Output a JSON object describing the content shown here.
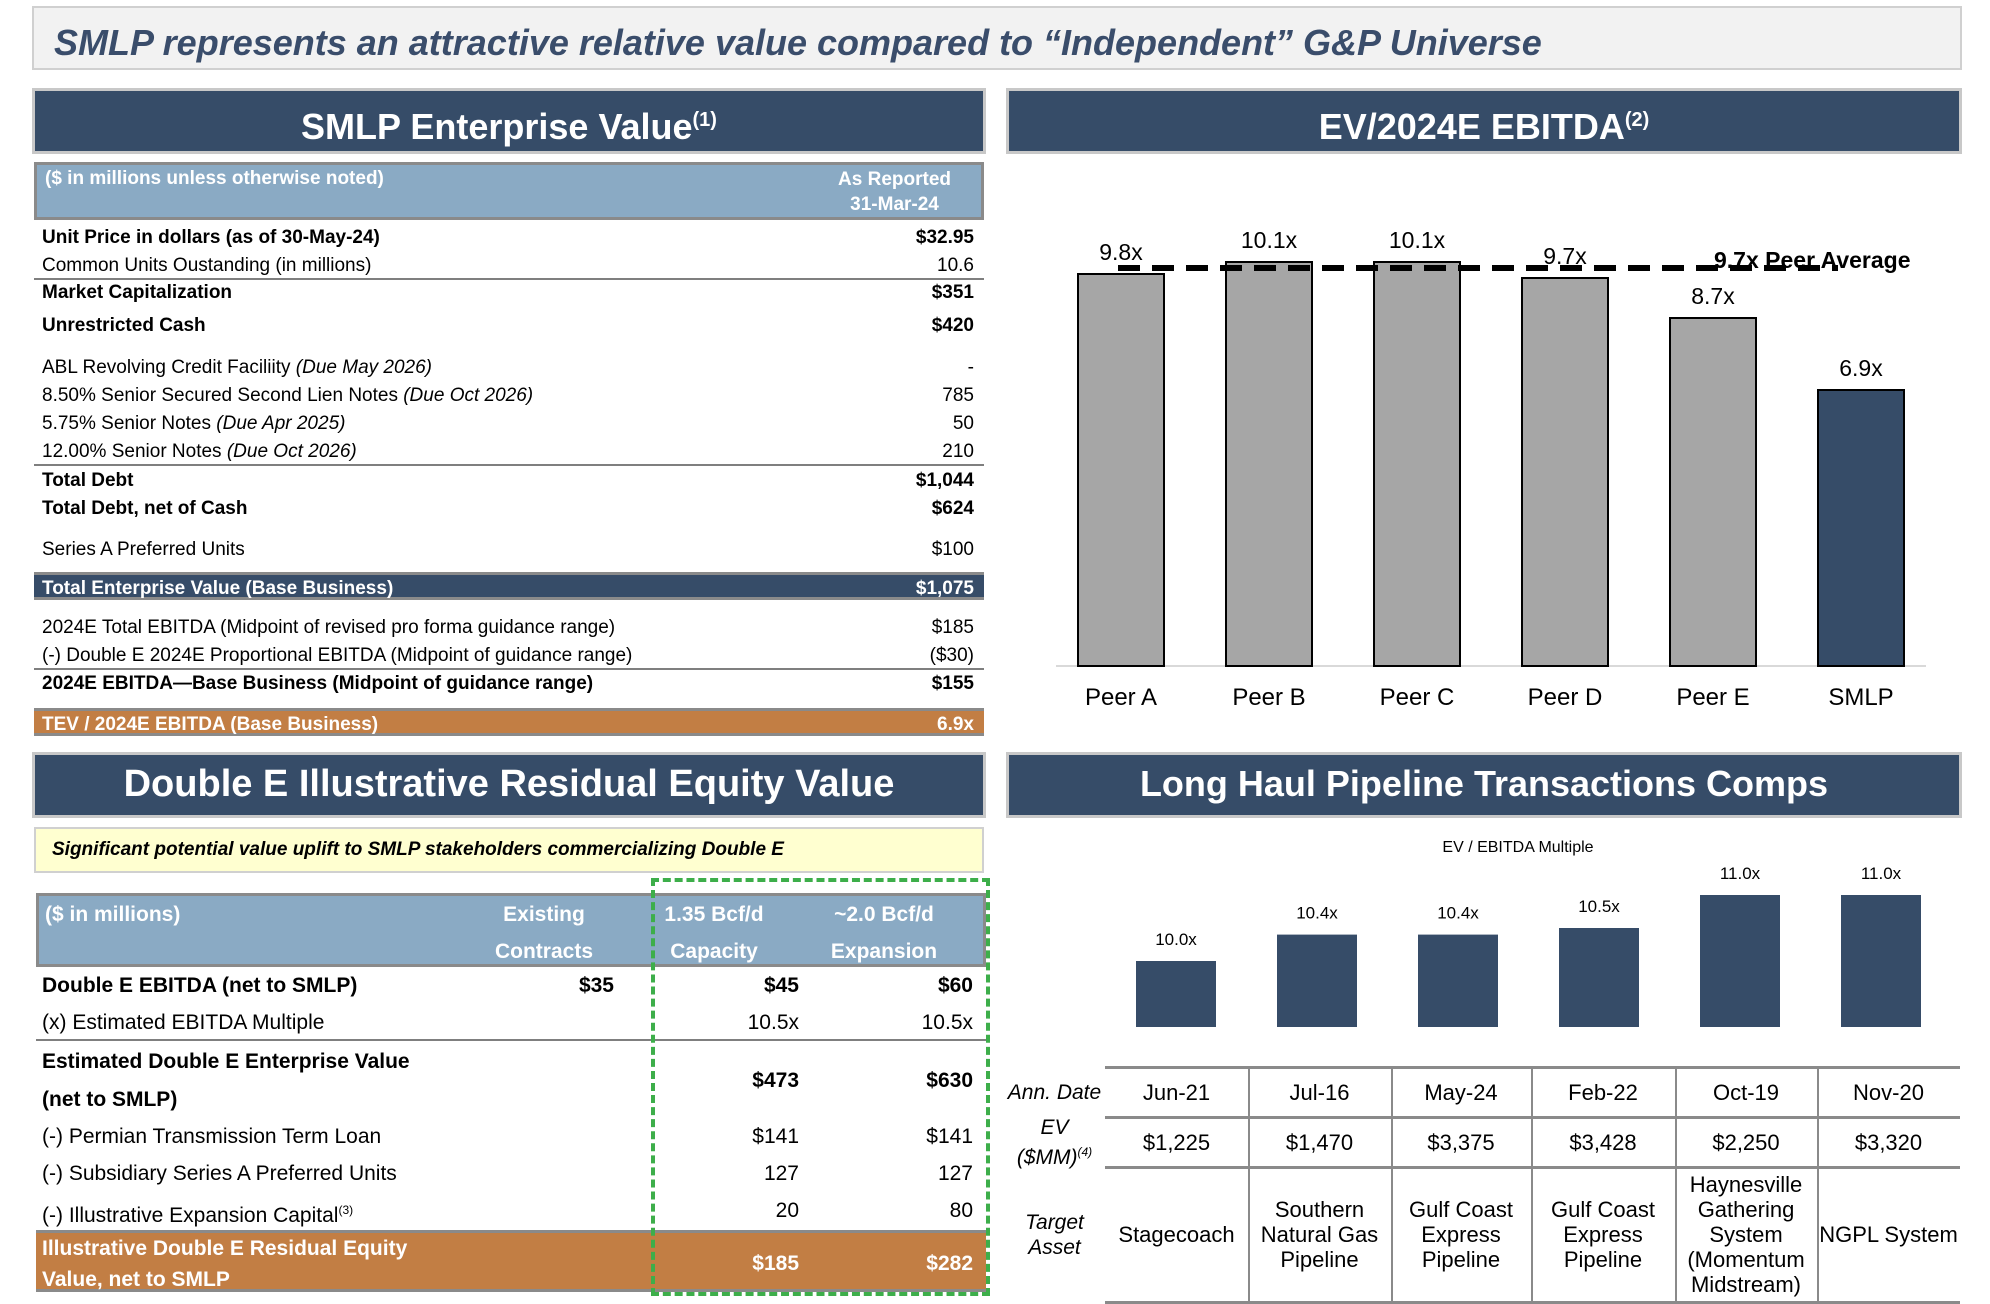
{
  "title": "SMLP represents an attractive relative value compared to “Independent” G&P Universe",
  "ev_section": {
    "heading": "SMLP Enterprise Value",
    "note": "(1)",
    "col_label": "($ in millions unless otherwise noted)",
    "col_head_1": "As Reported",
    "col_head_2": "31-Mar-24",
    "rows": [
      {
        "label": "Unit Price in dollars (as of 30-May-24)",
        "value": "$32.95"
      },
      {
        "label": "Common Units Oustanding (in millions)",
        "value": "10.6"
      },
      {
        "label": "Market Capitalization",
        "value": "$351"
      },
      {
        "label": "Unrestricted Cash",
        "value": "$420"
      },
      {
        "label": "ABL Revolving Credit Faciliity ",
        "italic": "(Due May 2026)",
        "value": "-"
      },
      {
        "label": "8.50% Senior Secured Second Lien Notes ",
        "italic": "(Due Oct 2026)",
        "value": "785"
      },
      {
        "label": "5.75% Senior Notes ",
        "italic": "(Due Apr 2025)",
        "value": "50"
      },
      {
        "label": "12.00% Senior Notes ",
        "italic": "(Due Oct 2026)",
        "value": "210"
      },
      {
        "label": "Total Debt",
        "value": "$1,044"
      },
      {
        "label": "Total Debt, net of Cash",
        "value": "$624"
      },
      {
        "label": "Series A Preferred Units",
        "value": "$100"
      },
      {
        "label": "Total Enterprise Value (Base Business)",
        "value": "$1,075"
      },
      {
        "label": "2024E Total EBITDA (Midpoint of revised pro forma guidance range)",
        "value": "$185"
      },
      {
        "label": "(-) Double E 2024E Proportional EBITDA (Midpoint of guidance range)",
        "value": "($30)"
      },
      {
        "label": "2024E EBITDA—Base Business (Midpoint of guidance range)",
        "value": "$155"
      },
      {
        "label": "TEV / 2024E EBITDA (Base Business)",
        "value": "6.9x"
      }
    ]
  },
  "de_section": {
    "heading": "Double E Illustrative Residual Equity Value",
    "callout": "Significant potential value uplift to SMLP stakeholders commercializing Double E",
    "col_label": "($ in millions)",
    "col_heads": [
      [
        "Existing",
        "Contracts"
      ],
      [
        "1.35 Bcf/d",
        "Capacity"
      ],
      [
        "~2.0 Bcf/d",
        "Expansion"
      ]
    ],
    "rows": [
      {
        "label": "Double E EBITDA (net to SMLP)",
        "values": [
          "$35",
          "$45",
          "$60"
        ]
      },
      {
        "label": "(x) Estimated EBITDA Multiple",
        "values": [
          "",
          "10.5x",
          "10.5x"
        ]
      },
      {
        "label": "Estimated Double E Enterprise Value",
        "label2": "(net to SMLP)",
        "values": [
          "",
          "$473",
          "$630"
        ]
      },
      {
        "label": "(-) Permian Transmission Term Loan",
        "values": [
          "",
          "$141",
          "$141"
        ]
      },
      {
        "label": "(-) Subsidiary Series A Preferred Units",
        "values": [
          "",
          "127",
          "127"
        ]
      },
      {
        "label": "(-) Illustrative Expansion Capital",
        "note": "(3)",
        "values": [
          "",
          "20",
          "80"
        ]
      },
      {
        "label": "Illustrative Double E Residual Equity",
        "label2": "Value, net to SMLP",
        "values": [
          "",
          "$185",
          "$282"
        ]
      }
    ]
  },
  "ev_chart_heading": "EV/2024E EBITDA",
  "ev_chart_note": "(2)",
  "lh_heading": "Long Haul Pipeline Transactions Comps",
  "chart_data": [
    {
      "type": "bar",
      "categories": [
        "Peer A",
        "Peer B",
        "Peer C",
        "Peer D",
        "Peer E",
        "SMLP"
      ],
      "values": [
        9.8,
        10.1,
        10.1,
        9.7,
        8.7,
        6.9
      ],
      "data_labels": [
        "9.8x",
        "10.1x",
        "10.1x",
        "9.7x",
        "8.7x",
        "6.9x"
      ],
      "colors": [
        "#a6a6a6",
        "#a6a6a6",
        "#a6a6a6",
        "#a6a6a6",
        "#a6a6a6",
        "#364c68"
      ],
      "reference_line": {
        "value": 9.7,
        "label": "9.7x Peer Average",
        "style": "dashed"
      },
      "ylim": [
        0,
        10.5
      ],
      "grid": false
    },
    {
      "type": "bar",
      "title": "EV / EBITDA Multiple",
      "categories": [
        "Stagecoach",
        "Southern Natural Gas Pipeline",
        "Gulf Coast Express Pipeline",
        "Gulf Coast Express Pipeline",
        "Haynesville Gathering System (Momentum Midstream)",
        "NGPL System"
      ],
      "values": [
        10.0,
        10.4,
        10.4,
        10.5,
        11.0,
        11.0
      ],
      "data_labels": [
        "10.0x",
        "10.4x",
        "10.4x",
        "10.5x",
        "11.0x",
        "11.0x"
      ],
      "color": "#364c68",
      "ylim": [
        9.0,
        11.0
      ],
      "grid": false
    }
  ],
  "comps_table": {
    "row_labels": [
      [
        "Ann. Date"
      ],
      [
        "EV",
        "($MM)"
      ],
      [
        "Target",
        "Asset"
      ]
    ],
    "ev_note": "(4)",
    "dates": [
      "Jun-21",
      "Jul-16",
      "May-24",
      "Feb-22",
      "Oct-19",
      "Nov-20"
    ],
    "evs": [
      "$1,225",
      "$1,470",
      "$3,375",
      "$3,428",
      "$2,250",
      "$3,320"
    ],
    "assets": [
      [
        "Stagecoach"
      ],
      [
        "Southern",
        "Natural Gas",
        "Pipeline"
      ],
      [
        "Gulf Coast",
        "Express",
        "Pipeline"
      ],
      [
        "Gulf Coast",
        "Express",
        "Pipeline"
      ],
      [
        "Haynesville",
        "Gathering",
        "System",
        "(Momentum",
        "Midstream)"
      ],
      [
        "NGPL System"
      ]
    ]
  }
}
